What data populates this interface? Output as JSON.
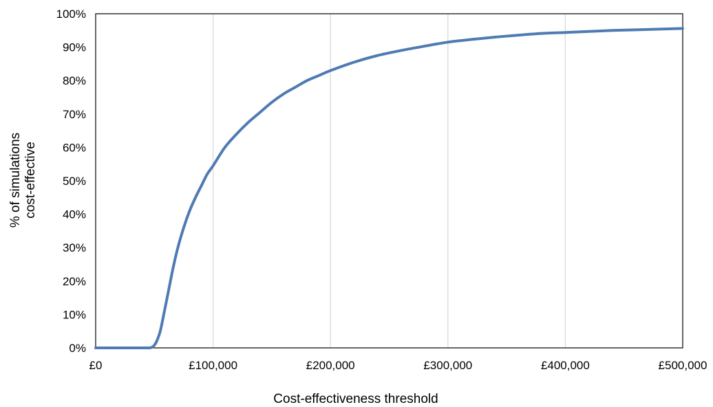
{
  "chart_data": {
    "type": "line",
    "title": "",
    "xlabel": "Cost-effectiveness threshold",
    "ylabel_lines": [
      "% of simulations",
      "cost-effective"
    ],
    "xlim": [
      0,
      500000
    ],
    "ylim": [
      0,
      100
    ],
    "x_ticks": [
      0,
      100000,
      200000,
      300000,
      400000,
      500000
    ],
    "x_tick_labels": [
      "£0",
      "£100,000",
      "£200,000",
      "£300,000",
      "£400,000",
      "£500,000"
    ],
    "y_ticks": [
      0,
      10,
      20,
      30,
      40,
      50,
      60,
      70,
      80,
      90,
      100
    ],
    "y_tick_labels": [
      "0%",
      "10%",
      "20%",
      "30%",
      "40%",
      "50%",
      "60%",
      "70%",
      "80%",
      "90%",
      "100%"
    ],
    "grid": "vertical",
    "legend": "none",
    "series": [
      {
        "color": "#4f7bb3",
        "x": [
          0,
          20000,
          40000,
          46000,
          48000,
          50000,
          52000,
          55000,
          58000,
          62000,
          66000,
          70000,
          75000,
          80000,
          85000,
          90000,
          95000,
          100000,
          110000,
          120000,
          130000,
          140000,
          150000,
          160000,
          170000,
          180000,
          190000,
          200000,
          220000,
          240000,
          260000,
          280000,
          300000,
          320000,
          340000,
          360000,
          380000,
          400000,
          420000,
          440000,
          460000,
          480000,
          500000
        ],
        "y": [
          0,
          0,
          0,
          0,
          0.2,
          0.8,
          2,
          5,
          10,
          17,
          24,
          30,
          36,
          41,
          45,
          48.5,
          52,
          54.5,
          60,
          64,
          67.5,
          70.5,
          73.5,
          76,
          78,
          80,
          81.5,
          83,
          85.5,
          87.5,
          89,
          90.3,
          91.5,
          92.3,
          93,
          93.6,
          94.1,
          94.4,
          94.7,
          95,
          95.2,
          95.4,
          95.6
        ]
      }
    ]
  }
}
